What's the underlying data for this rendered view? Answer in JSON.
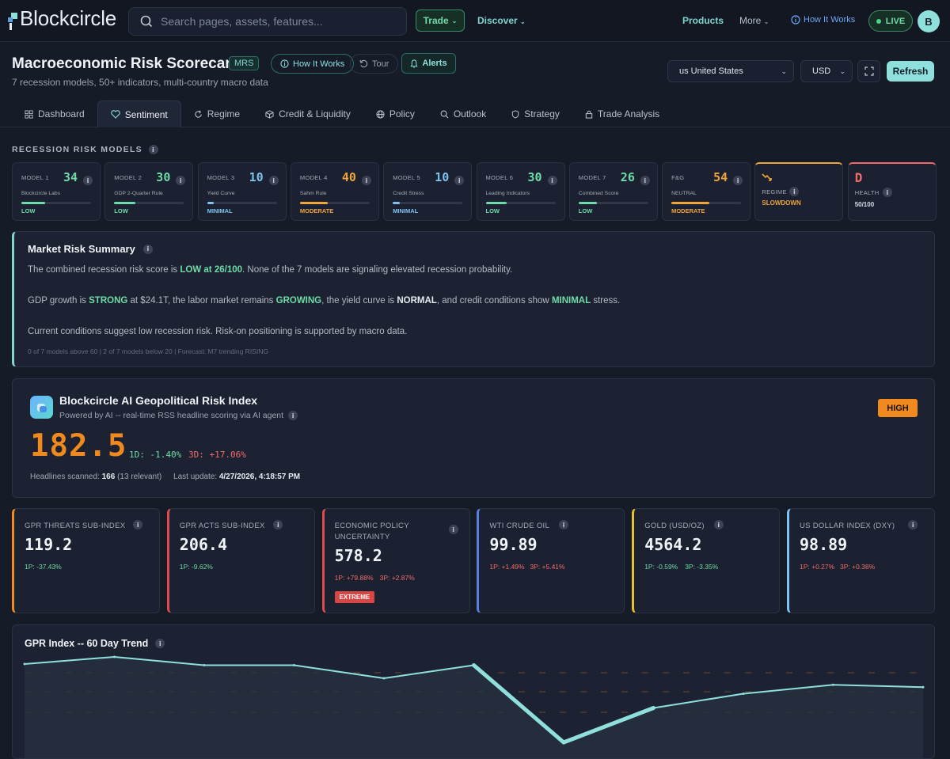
{
  "app": {
    "brand": "Blockcircle"
  },
  "topnav": {
    "search_placeholder": "Search pages, assets, features...",
    "trade": "Trade",
    "discover": "Discover",
    "products": "Products",
    "more": "More",
    "how_it_works": "How It Works",
    "live": "LIVE",
    "avatar": "B"
  },
  "header": {
    "title": "Macroeconomic Risk Scorecard",
    "badge": "MRS",
    "subtitle": "7 recession models, 50+ indicators, multi-country macro data",
    "how_it_works": "How It Works",
    "tour": "Tour",
    "alerts": "Alerts",
    "country": "us United States",
    "currency": "USD",
    "refresh": "Refresh"
  },
  "tabs": [
    {
      "label": "Dashboard",
      "icon": "grid-icon"
    },
    {
      "label": "Sentiment",
      "icon": "heart-icon",
      "active": true
    },
    {
      "label": "Regime",
      "icon": "refresh-icon"
    },
    {
      "label": "Credit & Liquidity",
      "icon": "cube-icon"
    },
    {
      "label": "Policy",
      "icon": "globe-icon"
    },
    {
      "label": "Outlook",
      "icon": "search-icon"
    },
    {
      "label": "Strategy",
      "icon": "shield-icon"
    },
    {
      "label": "Trade Analysis",
      "icon": "lock-icon"
    }
  ],
  "models_section": {
    "label": "RECESSION RISK MODELS",
    "models": [
      {
        "label": "MODEL 1",
        "value": "34",
        "name": "Blockcircle Labs",
        "status": "LOW",
        "fill": 0.34,
        "color": "#6fdba8"
      },
      {
        "label": "MODEL 2",
        "value": "30",
        "name": "GDP 2-Quarter Rule",
        "status": "LOW",
        "fill": 0.3,
        "color": "#6fdba8"
      },
      {
        "label": "MODEL 3",
        "value": "10",
        "name": "Yield Curve",
        "status": "MINIMAL",
        "fill": 0.1,
        "color": "#7ec3f0"
      },
      {
        "label": "MODEL 4",
        "value": "40",
        "name": "Sahm Rule",
        "status": "MODERATE",
        "fill": 0.4,
        "color": "#f0a43a"
      },
      {
        "label": "MODEL 5",
        "value": "10",
        "name": "Credit Stress",
        "status": "MINIMAL",
        "fill": 0.1,
        "color": "#7ec3f0"
      },
      {
        "label": "MODEL 6",
        "value": "30",
        "name": "Leading Indicators",
        "status": "LOW",
        "fill": 0.3,
        "color": "#6fdba8"
      },
      {
        "label": "MODEL 7",
        "value": "26",
        "name": "Combined Score",
        "status": "LOW",
        "fill": 0.26,
        "color": "#6fdba8"
      },
      {
        "label": "F&G",
        "value": "54",
        "name": "NEUTRAL",
        "status": "MODERATE",
        "fill": 0.54,
        "color": "#f0a43a"
      }
    ],
    "regime": {
      "label": "REGIME",
      "status": "SLOWDOWN",
      "color": "#f0a43a"
    },
    "health": {
      "grade": "D",
      "label": "HEALTH",
      "value": "50/100",
      "color": "#f26b6b"
    }
  },
  "summary": {
    "title": "Market Risk Summary",
    "p1_a": "The combined recession risk score is ",
    "p1_b": "LOW at 26/100",
    "p1_c": ". None of the 7 models are signaling elevated recession probability.",
    "p2_a": "GDP growth is ",
    "p2_b": "STRONG",
    "p2_c": " at $24.1T, the labor market remains ",
    "p2_d": "GROWING",
    "p2_e": ", the yield curve is ",
    "p2_f": "NORMAL",
    "p2_g": ", and credit conditions show ",
    "p2_h": "MINIMAL",
    "p2_i": " stress.",
    "p3": "Current conditions suggest low recession risk. Risk-on positioning is supported by macro data.",
    "footer": "0 of 7 models above 60 | 2 of 7 models below 20 | Forecast: M7 trending RISING"
  },
  "geo": {
    "title": "Blockcircle AI Geopolitical Risk Index",
    "subtitle": "Powered by AI -- real-time RSS headline scoring via AI agent",
    "badge": "HIGH",
    "value": "182.5",
    "d1": "1D: -1.40%",
    "d3": "3D: +17.06%",
    "headlines_label": "Headlines scanned:",
    "headlines_value": "166",
    "relevant": "(13 relevant)",
    "update_label": "Last update:",
    "update_value": "4/27/2026, 4:18:57 PM"
  },
  "sub_indices": [
    {
      "label": "GPR THREATS SUB-INDEX",
      "value": "119.2",
      "d1": "1P: -37.43%",
      "d1_color": "#6fdba8",
      "d3": "",
      "d3_color": "",
      "border": "#f08a1e"
    },
    {
      "label": "GPR ACTS SUB-INDEX",
      "value": "206.4",
      "d1": "1P: -9.62%",
      "d1_color": "#6fdba8",
      "d3": "",
      "d3_color": "",
      "border": "#e04a4a"
    },
    {
      "label": "ECONOMIC POLICY UNCERTAINTY",
      "value": "578.2",
      "d1": "1P: +79.88%",
      "d1_color": "#f26b6b",
      "d3": "3P: +2.87%",
      "d3_color": "#f26b6b",
      "border": "#e04a4a",
      "tag": "EXTREME"
    },
    {
      "label": "WTI CRUDE OIL",
      "value": "99.89",
      "d1": "1P: +1.49%",
      "d1_color": "#f26b6b",
      "d3": "3P: +5.41%",
      "d3_color": "#f26b6b",
      "border": "#5b7fe0"
    },
    {
      "label": "GOLD (USD/OZ)",
      "value": "4564.2",
      "d1": "1P: -0.59%",
      "d1_color": "#6fdba8",
      "d3": "3P: -3.35%",
      "d3_color": "#6fdba8",
      "border": "#e7c12b"
    },
    {
      "label": "US DOLLAR INDEX (DXY)",
      "value": "98.89",
      "d1": "1P: +0.27%",
      "d1_color": "#f26b6b",
      "d3": "3P: +0.38%",
      "d3_color": "#f26b6b",
      "border": "#7ec3f0"
    }
  ],
  "gpr_trend": {
    "title": "GPR Index -- 60 Day Trend",
    "line_color": "#8fe0dd"
  },
  "chart_data": {
    "type": "line",
    "title": "GPR Index -- 60 Day Trend",
    "xlabel": "",
    "ylabel": "",
    "x": [
      0,
      1,
      2,
      3,
      4,
      5,
      6,
      7,
      8,
      9,
      10
    ],
    "series": [
      {
        "values": [
          148,
          160,
          146,
          146,
          124,
          146,
          16,
          74,
          98,
          113,
          109
        ]
      }
    ],
    "ylim": [
      0,
      200
    ],
    "grid": true
  }
}
